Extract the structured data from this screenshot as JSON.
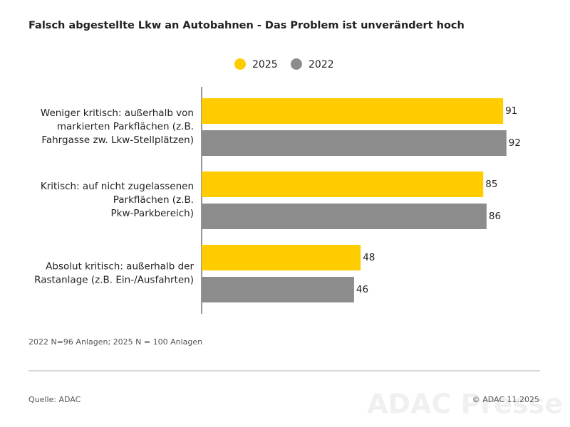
{
  "chart_data": {
    "type": "hbar",
    "title": "Falsch abgestellte Lkw an Autobahnen - Das Problem ist unverändert hoch",
    "categories": [
      "Weniger kritisch: außerhalb von\nmarkierten Parkflächen (z.B.\nFahrgasse zw. Lkw-Stellplätzen)",
      "Kritisch: auf nicht zugelassenen\nParkflächen (z.B.\nPkw-Parkbereich)",
      "Absolut kritisch: außerhalb der\nRastanlage (z.B. Ein-/Ausfahrten)"
    ],
    "series": [
      {
        "name": "2025",
        "color": "#ffcc00",
        "values": [
          91,
          85,
          48
        ]
      },
      {
        "name": "2022",
        "color": "#8c8c8c",
        "values": [
          92,
          86,
          46
        ]
      }
    ],
    "note": "2022 N=96 Anlagen; 2025 N = 100 Anlagen",
    "source": "Quelle: ADAC",
    "copyright": "© ADAC 11.2025",
    "watermark": "ADAC Presse"
  }
}
